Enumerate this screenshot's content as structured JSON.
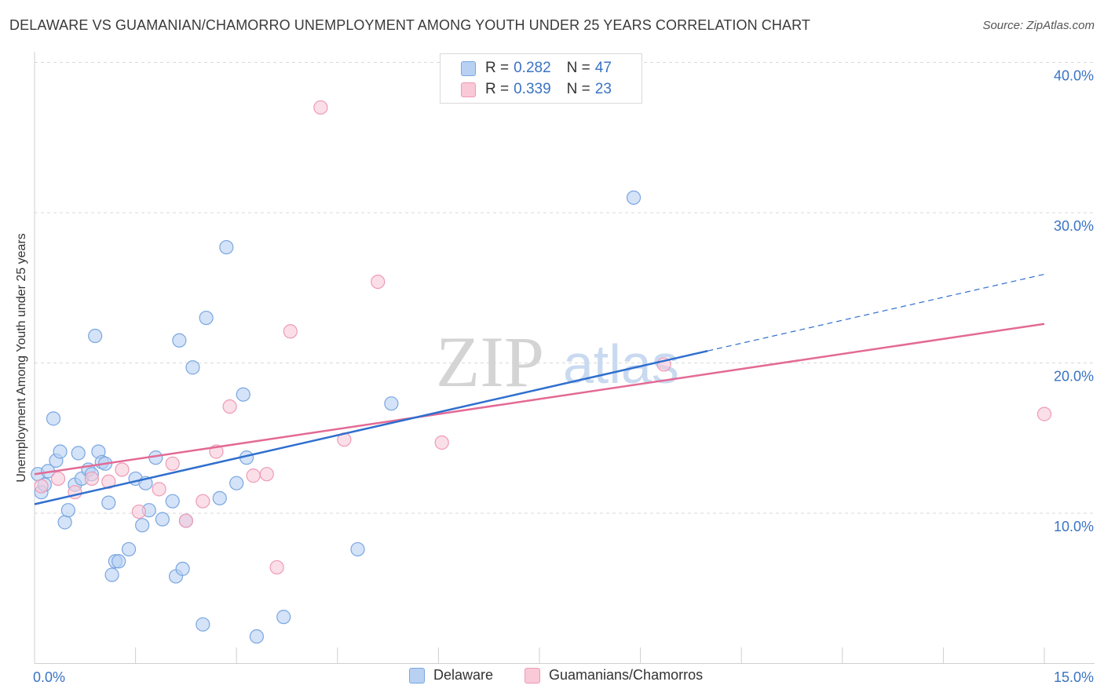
{
  "header": {
    "title": "DELAWARE VS GUAMANIAN/CHAMORRO UNEMPLOYMENT AMONG YOUTH UNDER 25 YEARS CORRELATION CHART",
    "source": "Source: ZipAtlas.com"
  },
  "watermark": {
    "zip": "ZIP",
    "atlas": "atlas"
  },
  "legend": {
    "items": [
      {
        "r_label": "R =",
        "r_value": "0.282",
        "n_label": "N =",
        "n_value": "47"
      },
      {
        "r_label": "R =",
        "r_value": "0.339",
        "n_label": "N =",
        "n_value": "23"
      }
    ],
    "bottom": [
      "Delaware",
      "Guamanians/Chamorros"
    ]
  },
  "colors": {
    "delaware_fill": "#b8d1f3",
    "delaware_stroke": "#7aa6e0",
    "delaware_line": "#2f6fce",
    "guam_fill": "#f9c9d8",
    "guam_stroke": "#ee9ab5",
    "guam_line": "#e36a95",
    "grid": "#d9d9d9",
    "tick_text": "#3a73c4"
  },
  "chart_data": {
    "type": "scatter",
    "title": "DELAWARE VS GUAMANIAN/CHAMORRO UNEMPLOYMENT AMONG YOUTH UNDER 25 YEARS CORRELATION CHART",
    "ylabel": "Unemployment Among Youth under 25 years",
    "xlabel": "",
    "xlim": [
      0,
      15
    ],
    "ylim": [
      0,
      40
    ],
    "x_tick_labels": [
      "0.0%",
      "15.0%"
    ],
    "y_ticks": [
      10,
      20,
      30,
      40
    ],
    "y_tick_labels": [
      "10.0%",
      "20.0%",
      "30.0%",
      "40.0%"
    ],
    "grid": true,
    "legend_position": "top-center",
    "series": [
      {
        "name": "Delaware",
        "r": 0.282,
        "n": 47,
        "points": [
          [
            0.05,
            12.6
          ],
          [
            0.1,
            11.4
          ],
          [
            0.15,
            11.9
          ],
          [
            0.2,
            12.8
          ],
          [
            0.28,
            16.3
          ],
          [
            0.32,
            13.5
          ],
          [
            0.38,
            14.1
          ],
          [
            0.45,
            9.4
          ],
          [
            0.5,
            10.2
          ],
          [
            0.6,
            11.9
          ],
          [
            0.65,
            14.0
          ],
          [
            0.7,
            12.3
          ],
          [
            0.8,
            12.9
          ],
          [
            0.85,
            12.6
          ],
          [
            0.9,
            21.8
          ],
          [
            0.95,
            14.1
          ],
          [
            1.0,
            13.4
          ],
          [
            1.05,
            13.3
          ],
          [
            1.1,
            10.7
          ],
          [
            1.15,
            5.9
          ],
          [
            1.2,
            6.8
          ],
          [
            1.25,
            6.8
          ],
          [
            1.4,
            7.6
          ],
          [
            1.5,
            12.3
          ],
          [
            1.6,
            9.2
          ],
          [
            1.65,
            12.0
          ],
          [
            1.7,
            10.2
          ],
          [
            1.8,
            13.7
          ],
          [
            1.9,
            9.6
          ],
          [
            2.05,
            10.8
          ],
          [
            2.1,
            5.8
          ],
          [
            2.15,
            21.5
          ],
          [
            2.2,
            6.3
          ],
          [
            2.25,
            9.5
          ],
          [
            2.35,
            19.7
          ],
          [
            2.5,
            2.6
          ],
          [
            2.55,
            23.0
          ],
          [
            2.75,
            11.0
          ],
          [
            2.85,
            27.7
          ],
          [
            3.0,
            12.0
          ],
          [
            3.1,
            17.9
          ],
          [
            3.15,
            13.7
          ],
          [
            3.3,
            1.8
          ],
          [
            3.7,
            3.1
          ],
          [
            4.8,
            7.6
          ],
          [
            5.3,
            17.3
          ],
          [
            8.9,
            31.0
          ]
        ],
        "trend": {
          "x0": 0,
          "y0": 10.6,
          "x1": 10.0,
          "y1": 20.8,
          "dash_x1": 15.0,
          "dash_y1": 25.9
        }
      },
      {
        "name": "Guamanians/Chamorros",
        "r": 0.339,
        "n": 23,
        "points": [
          [
            0.1,
            11.8
          ],
          [
            0.35,
            12.3
          ],
          [
            0.6,
            11.4
          ],
          [
            0.85,
            12.3
          ],
          [
            1.1,
            12.1
          ],
          [
            1.3,
            12.9
          ],
          [
            1.55,
            10.1
          ],
          [
            1.85,
            11.6
          ],
          [
            2.05,
            13.3
          ],
          [
            2.25,
            9.5
          ],
          [
            2.5,
            10.8
          ],
          [
            2.7,
            14.1
          ],
          [
            2.9,
            17.1
          ],
          [
            3.25,
            12.5
          ],
          [
            3.45,
            12.6
          ],
          [
            3.6,
            6.4
          ],
          [
            3.8,
            22.1
          ],
          [
            4.25,
            37.0
          ],
          [
            4.6,
            14.9
          ],
          [
            5.1,
            25.4
          ],
          [
            6.05,
            14.7
          ],
          [
            9.35,
            19.9
          ],
          [
            15.0,
            16.6
          ]
        ],
        "trend": {
          "x0": 0,
          "y0": 12.6,
          "x1": 15.0,
          "y1": 22.6
        }
      }
    ]
  }
}
